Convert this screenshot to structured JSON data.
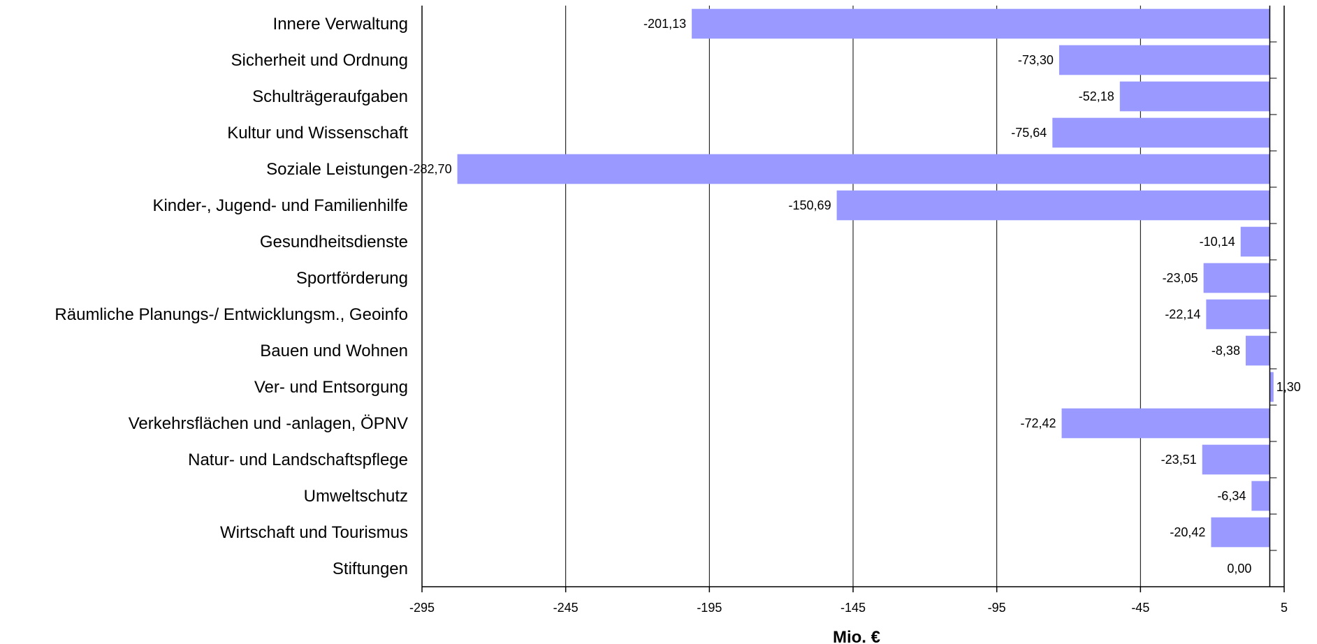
{
  "chart_data": {
    "type": "bar",
    "orientation": "horizontal",
    "categories": [
      "Innere Verwaltung",
      "Sicherheit und Ordnung",
      "Schulträgeraufgaben",
      "Kultur und Wissenschaft",
      "Soziale Leistungen",
      "Kinder-, Jugend- und Familienhilfe",
      "Gesundheitsdienste",
      "Sportförderung",
      "Räumliche Planungs-/ Entwicklungsm., Geoinfo",
      "Bauen und Wohnen",
      "Ver- und Entsorgung",
      "Verkehrsflächen und -anlagen, ÖPNV",
      "Natur- und Landschaftspflege",
      "Umweltschutz",
      "Wirtschaft und Tourismus",
      "Stiftungen"
    ],
    "values": [
      -201.13,
      -73.3,
      -52.18,
      -75.64,
      -282.7,
      -150.69,
      -10.14,
      -23.05,
      -22.14,
      -8.38,
      1.3,
      -72.42,
      -23.51,
      -6.34,
      -20.42,
      0.0
    ],
    "data_labels": [
      "-201,13",
      "-73,30",
      "-52,18",
      "-75,64",
      "-282,70",
      "-150,69",
      "-10,14",
      "-23,05",
      "-22,14",
      "-8,38",
      "1,30",
      "-72,42",
      "-23,51",
      "-6,34",
      "-20,42",
      "0,00"
    ],
    "xlabel": "Mio. €",
    "xlim": [
      -295,
      5
    ],
    "xticks": [
      -295,
      -245,
      -195,
      -145,
      -95,
      -45,
      5
    ],
    "xtick_labels": [
      "-295",
      "-245",
      "-195",
      "-145",
      "-95",
      "-45",
      "5"
    ],
    "grid": "vertical",
    "bar_color": "#9999ff"
  }
}
